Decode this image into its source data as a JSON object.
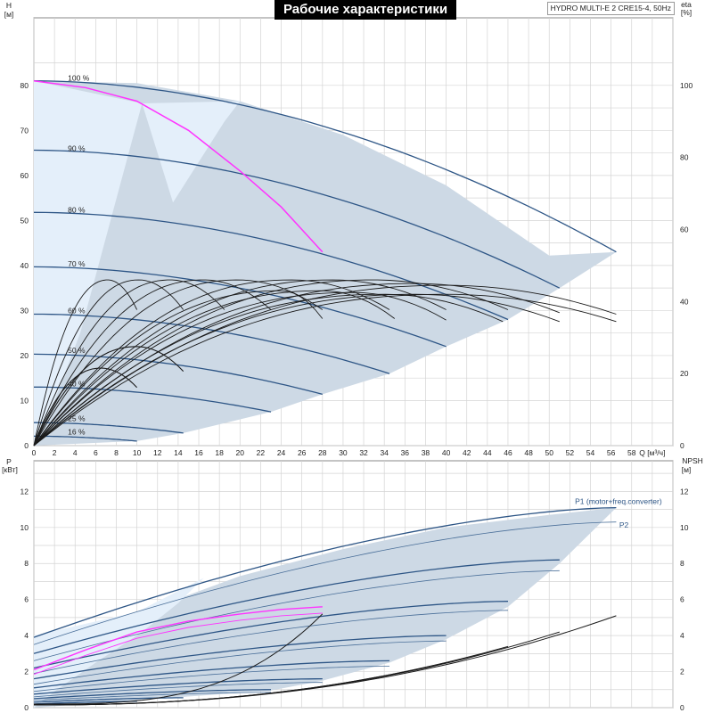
{
  "header": {
    "title": "Рабочие характеристики",
    "model": "HYDRO MULTI-E 2 CRE15-4, 50Hz"
  },
  "colors": {
    "region_fill": "#cdd9e5",
    "light_fill": "#e4effa",
    "curve_blue": "#2e5686",
    "curve_black": "#1a1a1a",
    "highlight": "#ff33ff",
    "p1_label": "#2e5686",
    "grid": "#d4d4d4"
  },
  "chart_data": [
    {
      "id": "head",
      "type": "line",
      "xlabel": "Q [м³/ч]",
      "ylabel_top": "H",
      "ylabel_unit": "[м]",
      "y2label_top": "eta",
      "y2label_unit": "[%]",
      "xlim": [
        0,
        62
      ],
      "ylim": [
        0,
        95
      ],
      "y2lim": [
        0,
        118.75
      ],
      "xticks": [
        0,
        2,
        4,
        6,
        8,
        10,
        12,
        14,
        16,
        18,
        20,
        22,
        24,
        26,
        28,
        30,
        32,
        34,
        36,
        38,
        40,
        42,
        44,
        46,
        48,
        50,
        52,
        54,
        56,
        58
      ],
      "yticks": [
        0,
        10,
        20,
        30,
        40,
        50,
        60,
        70,
        80
      ],
      "y2ticks": [
        0,
        20,
        40,
        60,
        80,
        100
      ],
      "region": [
        [
          0,
          81
        ],
        [
          10,
          80.5
        ],
        [
          20,
          76.5
        ],
        [
          30,
          69
        ],
        [
          40,
          57.8
        ],
        [
          50,
          42.2
        ],
        [
          56.5,
          43
        ],
        [
          51,
          35
        ],
        [
          46,
          28
        ],
        [
          40,
          22
        ],
        [
          34.5,
          16
        ],
        [
          28,
          11.4
        ],
        [
          23,
          7.5
        ],
        [
          14.5,
          2.8
        ],
        [
          10,
          1
        ],
        [
          0,
          0
        ]
      ],
      "light_region": [
        [
          0,
          81
        ],
        [
          10.5,
          76
        ],
        [
          4.5,
          25
        ],
        [
          2,
          10
        ],
        [
          0,
          0
        ]
      ],
      "light_region2": [
        [
          10.5,
          76
        ],
        [
          20,
          76.5
        ],
        [
          18.5,
          72
        ],
        [
          13.5,
          54
        ]
      ],
      "speed_labels": [
        {
          "text": "100 %",
          "q": 3.3,
          "h": 80.8
        },
        {
          "text": "90 %",
          "q": 3.3,
          "h": 65.2
        },
        {
          "text": "80 %",
          "q": 3.3,
          "h": 51.6
        },
        {
          "text": "70 %",
          "q": 3.3,
          "h": 39.6
        },
        {
          "text": "60 %",
          "q": 3.3,
          "h": 29.2
        },
        {
          "text": "50 %",
          "q": 3.3,
          "h": 20.4
        },
        {
          "text": "40 %",
          "q": 3.3,
          "h": 13.0
        },
        {
          "text": "25 %",
          "q": 3.3,
          "h": 5.2
        },
        {
          "text": "16 %",
          "q": 3.3,
          "h": 2.3
        }
      ],
      "speed_curves": [
        {
          "pct": 100,
          "h0": 81,
          "qmax": 56.5,
          "hend": 43
        },
        {
          "pct": 90,
          "h0": 65.6,
          "qmax": 51,
          "hend": 35
        },
        {
          "pct": 80,
          "h0": 51.8,
          "qmax": 46,
          "hend": 28
        },
        {
          "pct": 70,
          "h0": 39.7,
          "qmax": 40,
          "hend": 22
        },
        {
          "pct": 60,
          "h0": 29.2,
          "qmax": 34.5,
          "hend": 16
        },
        {
          "pct": 50,
          "h0": 20.3,
          "qmax": 28,
          "hend": 11.4
        },
        {
          "pct": 40,
          "h0": 13,
          "qmax": 23,
          "hend": 7.5
        },
        {
          "pct": 25,
          "h0": 5.1,
          "qmax": 14.5,
          "hend": 2.8
        },
        {
          "pct": 16,
          "h0": 2.1,
          "qmax": 10,
          "hend": 1
        }
      ],
      "highlight_curve": [
        [
          0,
          81
        ],
        [
          5,
          79.5
        ],
        [
          10,
          76.5
        ],
        [
          15,
          70
        ],
        [
          20,
          61
        ],
        [
          24,
          53
        ],
        [
          28,
          43
        ]
      ],
      "eta_curves": [
        {
          "qend": 10,
          "peak": 46,
          "qpeak": 7.2
        },
        {
          "qend": 14.5,
          "peak": 46,
          "qpeak": 10.2
        },
        {
          "qend": 18.5,
          "peak": 46,
          "qpeak": 13.3
        },
        {
          "qend": 23,
          "peak": 46,
          "qpeak": 16.5
        },
        {
          "qend": 28,
          "peak": 46,
          "qpeak": 19.8
        },
        {
          "qend": 34.5,
          "peak": 46,
          "qpeak": 25
        },
        {
          "qend": 40,
          "peak": 46,
          "qpeak": 29
        },
        {
          "qend": 46,
          "peak": 46,
          "qpeak": 33
        },
        {
          "qend": 51,
          "peak": 45,
          "qpeak": 37
        },
        {
          "qend": 56.5,
          "peak": 44.5,
          "qpeak": 40
        },
        {
          "qend": 28,
          "peak": 43,
          "qpeak": 24
        },
        {
          "qend": 35,
          "peak": 43,
          "qpeak": 28
        },
        {
          "qend": 40,
          "peak": 42.5,
          "qpeak": 31
        },
        {
          "qend": 45.5,
          "peak": 42,
          "qpeak": 34
        },
        {
          "qend": 51,
          "peak": 42,
          "qpeak": 37
        },
        {
          "qend": 56.5,
          "peak": 42,
          "qpeak": 40
        }
      ],
      "eta_small": [
        {
          "qend": 10,
          "peak": 21.5,
          "qpeak": 6.5
        },
        {
          "qend": 14.5,
          "peak": 27.5,
          "qpeak": 10
        }
      ]
    },
    {
      "id": "power",
      "type": "line",
      "ylabel_top": "P",
      "ylabel_unit": "[кВт]",
      "y2label_top": "NPSH",
      "y2label_unit": "[м]",
      "xlim": [
        0,
        62
      ],
      "ylim": [
        0,
        13.7
      ],
      "yticks": [
        0,
        2,
        4,
        6,
        8,
        10,
        12
      ],
      "y2ticks": [
        0,
        2,
        4,
        6,
        8,
        10,
        12
      ],
      "series_labels": [
        {
          "text": "P1 (motor+freq.converter)",
          "q": 52.5,
          "p": 11.3
        },
        {
          "text": "P2",
          "q": 56.8,
          "p": 10.0
        }
      ],
      "region": [
        [
          0,
          4
        ],
        [
          10,
          5.2
        ],
        [
          20,
          7.3
        ],
        [
          30,
          8.8
        ],
        [
          40,
          10
        ],
        [
          50,
          10.7
        ],
        [
          56.5,
          11.1
        ],
        [
          51,
          8
        ],
        [
          46,
          5.6
        ],
        [
          40,
          3.8
        ],
        [
          34.5,
          2.5
        ],
        [
          28,
          1.5
        ],
        [
          23,
          0.95
        ],
        [
          14.5,
          0.6
        ],
        [
          10,
          0.4
        ],
        [
          0,
          0
        ]
      ],
      "light_region": [
        [
          0,
          4
        ],
        [
          10,
          5.3
        ],
        [
          16.5,
          7.2
        ],
        [
          14,
          5.8
        ],
        [
          10.5,
          4.2
        ],
        [
          6,
          2.5
        ],
        [
          2,
          0.9
        ],
        [
          0,
          0
        ]
      ],
      "p1_curves": [
        {
          "p0": 3.9,
          "qend": 56.5,
          "pend": 11.1
        },
        {
          "p0": 3.0,
          "qend": 51,
          "pend": 8.2
        },
        {
          "p0": 2.2,
          "qend": 46,
          "pend": 5.9
        },
        {
          "p0": 1.6,
          "qend": 40,
          "pend": 4.0
        },
        {
          "p0": 1.1,
          "qend": 34.5,
          "pend": 2.6
        },
        {
          "p0": 0.75,
          "qend": 28,
          "pend": 1.6
        },
        {
          "p0": 0.5,
          "qend": 23,
          "pend": 1.0
        },
        {
          "p0": 0.3,
          "qend": 14.5,
          "pend": 0.55
        },
        {
          "p0": 0.2,
          "qend": 10,
          "pend": 0.35
        }
      ],
      "p2_curves": [
        {
          "p0": 3.5,
          "qend": 56.5,
          "pend": 10.3
        },
        {
          "p0": 2.6,
          "qend": 51,
          "pend": 7.6
        },
        {
          "p0": 1.9,
          "qend": 46,
          "pend": 5.4
        },
        {
          "p0": 1.3,
          "qend": 40,
          "pend": 3.7
        },
        {
          "p0": 0.9,
          "qend": 34.5,
          "pend": 2.3
        },
        {
          "p0": 0.6,
          "qend": 28,
          "pend": 1.4
        },
        {
          "p0": 0.4,
          "qend": 23,
          "pend": 0.85
        }
      ],
      "highlight_p1": [
        [
          0,
          2.1
        ],
        [
          5,
          3.2
        ],
        [
          10,
          4.2
        ],
        [
          15,
          4.8
        ],
        [
          20,
          5.2
        ],
        [
          24,
          5.45
        ],
        [
          28,
          5.6
        ]
      ],
      "highlight_p2": [
        [
          0,
          1.85
        ],
        [
          5,
          2.9
        ],
        [
          10,
          3.85
        ],
        [
          15,
          4.45
        ],
        [
          20,
          4.85
        ],
        [
          24,
          5.1
        ],
        [
          28,
          5.25
        ]
      ],
      "npsh_curves": [
        {
          "qend": 28,
          "npend": 5.2,
          "shape": "steep"
        },
        {
          "qend": 40,
          "npend": 2.5
        },
        {
          "qend": 46,
          "npend": 3.4
        },
        {
          "qend": 51,
          "npend": 4.2
        },
        {
          "qend": 56.5,
          "npend": 5.1
        }
      ]
    }
  ]
}
